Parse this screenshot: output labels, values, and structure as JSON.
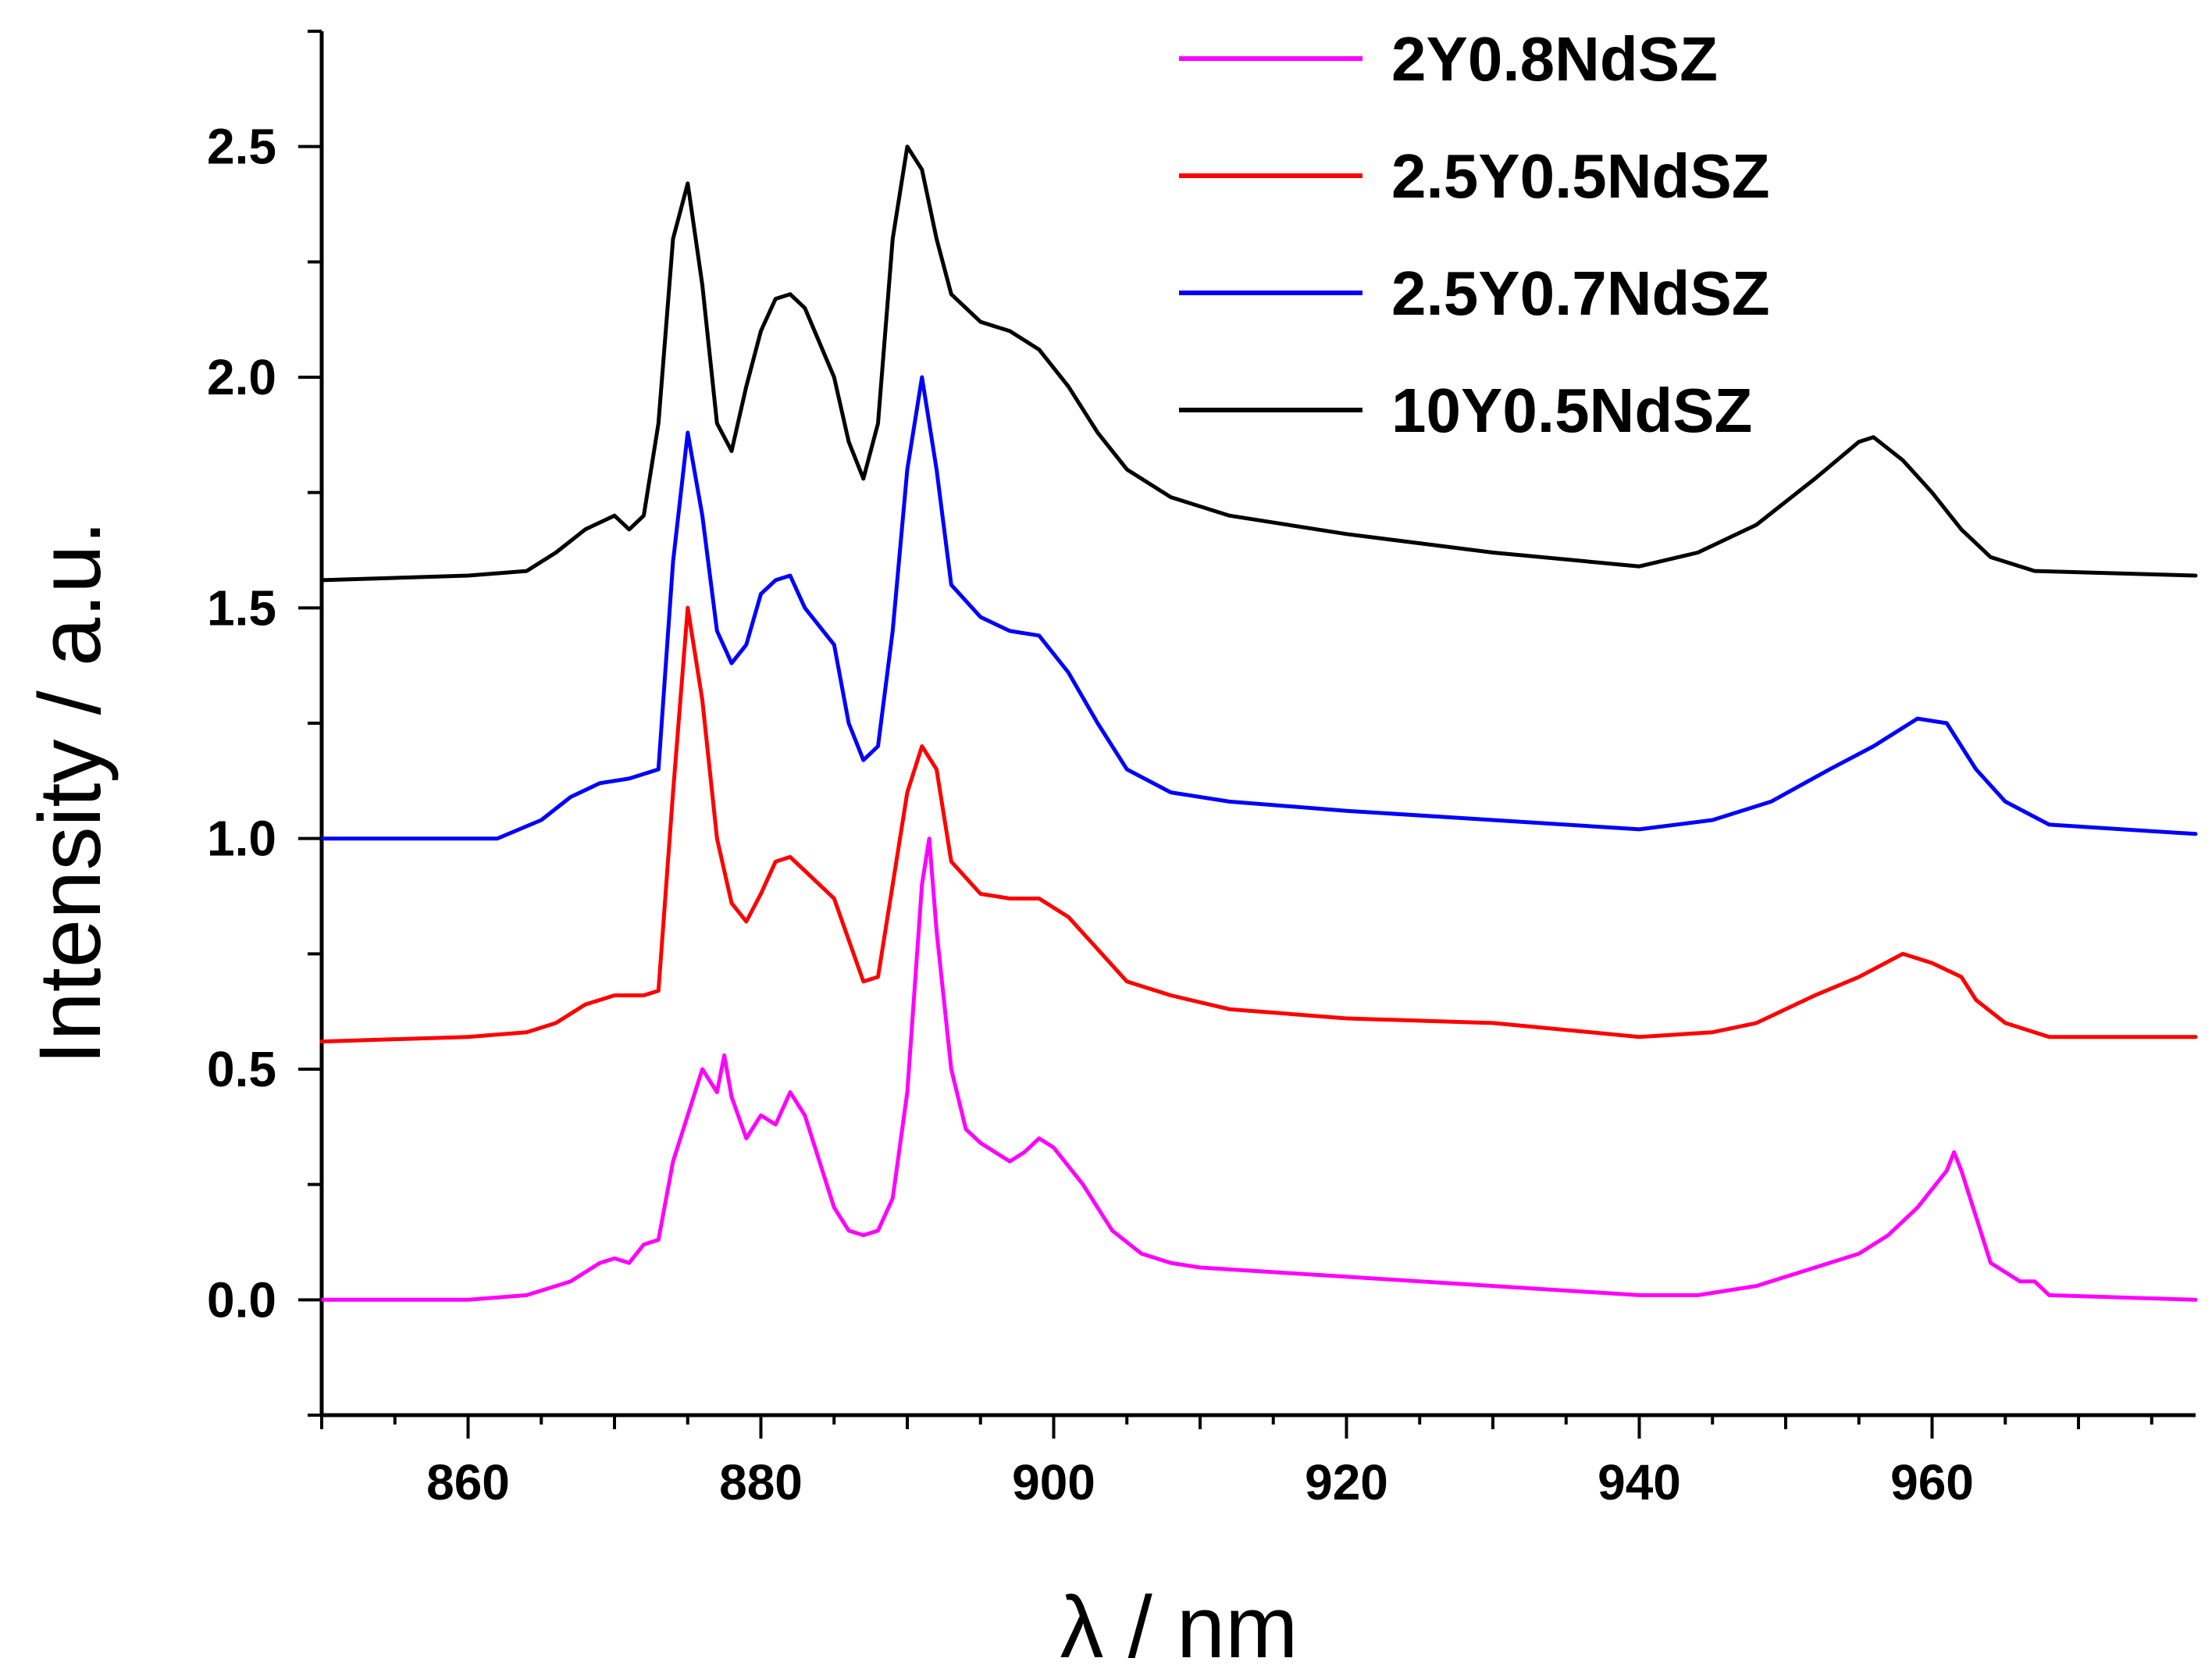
{
  "chart_data": {
    "type": "line",
    "title": "",
    "xlabel": "λ / nm",
    "ylabel": "Intensity / a.u.",
    "xlim": [
      850,
      978
    ],
    "ylim": [
      -0.25,
      2.75
    ],
    "xticks": [
      860,
      880,
      900,
      920,
      940,
      960
    ],
    "yticks": [
      0.0,
      0.5,
      1.0,
      1.5,
      2.0,
      2.5
    ],
    "xtick_labels": [
      "860",
      "880",
      "900",
      "920",
      "940",
      "960"
    ],
    "ytick_labels": [
      "0.0",
      "0.5",
      "1.0",
      "1.5",
      "2.0",
      "2.5"
    ],
    "grid": false,
    "legend_position": "top-right",
    "series": [
      {
        "name": "2Y0.8NdSZ",
        "color": "#ff00ff",
        "points": [
          [
            850,
            0.0
          ],
          [
            860,
            0.0
          ],
          [
            864,
            0.01
          ],
          [
            867,
            0.04
          ],
          [
            869,
            0.08
          ],
          [
            870,
            0.09
          ],
          [
            871,
            0.08
          ],
          [
            872,
            0.12
          ],
          [
            873,
            0.13
          ],
          [
            874,
            0.3
          ],
          [
            875,
            0.4
          ],
          [
            876,
            0.5
          ],
          [
            877,
            0.45
          ],
          [
            877.5,
            0.53
          ],
          [
            878,
            0.44
          ],
          [
            879,
            0.35
          ],
          [
            880,
            0.4
          ],
          [
            881,
            0.38
          ],
          [
            882,
            0.45
          ],
          [
            883,
            0.4
          ],
          [
            884,
            0.3
          ],
          [
            885,
            0.2
          ],
          [
            886,
            0.15
          ],
          [
            887,
            0.14
          ],
          [
            888,
            0.15
          ],
          [
            889,
            0.22
          ],
          [
            890,
            0.45
          ],
          [
            891,
            0.9
          ],
          [
            891.5,
            1.0
          ],
          [
            892,
            0.8
          ],
          [
            893,
            0.5
          ],
          [
            894,
            0.37
          ],
          [
            895,
            0.34
          ],
          [
            897,
            0.3
          ],
          [
            898,
            0.32
          ],
          [
            899,
            0.35
          ],
          [
            900,
            0.33
          ],
          [
            902,
            0.25
          ],
          [
            904,
            0.15
          ],
          [
            906,
            0.1
          ],
          [
            908,
            0.08
          ],
          [
            910,
            0.07
          ],
          [
            915,
            0.06
          ],
          [
            920,
            0.05
          ],
          [
            930,
            0.03
          ],
          [
            940,
            0.01
          ],
          [
            944,
            0.01
          ],
          [
            948,
            0.03
          ],
          [
            952,
            0.07
          ],
          [
            955,
            0.1
          ],
          [
            957,
            0.14
          ],
          [
            959,
            0.2
          ],
          [
            961,
            0.28
          ],
          [
            961.5,
            0.32
          ],
          [
            962,
            0.28
          ],
          [
            963,
            0.18
          ],
          [
            964,
            0.08
          ],
          [
            966,
            0.04
          ],
          [
            967,
            0.04
          ],
          [
            968,
            0.01
          ],
          [
            978,
            0.0
          ]
        ]
      },
      {
        "name": "2.5Y0.5NdSZ",
        "color": "#ff0000",
        "points": [
          [
            850,
            0.56
          ],
          [
            860,
            0.57
          ],
          [
            864,
            0.58
          ],
          [
            866,
            0.6
          ],
          [
            868,
            0.64
          ],
          [
            870,
            0.66
          ],
          [
            872,
            0.66
          ],
          [
            873,
            0.67
          ],
          [
            874,
            1.1
          ],
          [
            875,
            1.5
          ],
          [
            876,
            1.3
          ],
          [
            877,
            1.0
          ],
          [
            878,
            0.86
          ],
          [
            879,
            0.82
          ],
          [
            880,
            0.88
          ],
          [
            881,
            0.95
          ],
          [
            882,
            0.96
          ],
          [
            883,
            0.93
          ],
          [
            885,
            0.87
          ],
          [
            886,
            0.78
          ],
          [
            887,
            0.69
          ],
          [
            888,
            0.7
          ],
          [
            889,
            0.9
          ],
          [
            890,
            1.1
          ],
          [
            891,
            1.2
          ],
          [
            892,
            1.15
          ],
          [
            893,
            0.95
          ],
          [
            895,
            0.88
          ],
          [
            897,
            0.87
          ],
          [
            899,
            0.87
          ],
          [
            901,
            0.83
          ],
          [
            903,
            0.76
          ],
          [
            905,
            0.69
          ],
          [
            908,
            0.66
          ],
          [
            912,
            0.63
          ],
          [
            920,
            0.61
          ],
          [
            930,
            0.6
          ],
          [
            940,
            0.57
          ],
          [
            945,
            0.58
          ],
          [
            948,
            0.6
          ],
          [
            952,
            0.66
          ],
          [
            955,
            0.7
          ],
          [
            958,
            0.75
          ],
          [
            960,
            0.73
          ],
          [
            962,
            0.7
          ],
          [
            963,
            0.65
          ],
          [
            965,
            0.6
          ],
          [
            968,
            0.57
          ],
          [
            978,
            0.57
          ]
        ]
      },
      {
        "name": "2.5Y0.7NdSZ",
        "color": "#0000ff",
        "points": [
          [
            850,
            1.0
          ],
          [
            862,
            1.0
          ],
          [
            865,
            1.04
          ],
          [
            867,
            1.09
          ],
          [
            869,
            1.12
          ],
          [
            871,
            1.13
          ],
          [
            873,
            1.15
          ],
          [
            874,
            1.6
          ],
          [
            875,
            1.88
          ],
          [
            876,
            1.7
          ],
          [
            877,
            1.45
          ],
          [
            878,
            1.38
          ],
          [
            879,
            1.42
          ],
          [
            880,
            1.53
          ],
          [
            881,
            1.56
          ],
          [
            882,
            1.57
          ],
          [
            883,
            1.5
          ],
          [
            885,
            1.42
          ],
          [
            886,
            1.25
          ],
          [
            887,
            1.17
          ],
          [
            888,
            1.2
          ],
          [
            889,
            1.45
          ],
          [
            890,
            1.8
          ],
          [
            891,
            2.0
          ],
          [
            892,
            1.8
          ],
          [
            893,
            1.55
          ],
          [
            895,
            1.48
          ],
          [
            897,
            1.45
          ],
          [
            899,
            1.44
          ],
          [
            901,
            1.36
          ],
          [
            903,
            1.25
          ],
          [
            905,
            1.15
          ],
          [
            908,
            1.1
          ],
          [
            912,
            1.08
          ],
          [
            920,
            1.06
          ],
          [
            930,
            1.04
          ],
          [
            940,
            1.02
          ],
          [
            945,
            1.04
          ],
          [
            949,
            1.08
          ],
          [
            953,
            1.15
          ],
          [
            956,
            1.2
          ],
          [
            959,
            1.26
          ],
          [
            961,
            1.25
          ],
          [
            963,
            1.15
          ],
          [
            965,
            1.08
          ],
          [
            968,
            1.03
          ],
          [
            978,
            1.01
          ]
        ]
      },
      {
        "name": "10Y0.5NdSZ",
        "color": "#000000",
        "points": [
          [
            850,
            1.56
          ],
          [
            860,
            1.57
          ],
          [
            864,
            1.58
          ],
          [
            866,
            1.62
          ],
          [
            868,
            1.67
          ],
          [
            870,
            1.7
          ],
          [
            871,
            1.67
          ],
          [
            872,
            1.7
          ],
          [
            873,
            1.9
          ],
          [
            874,
            2.3
          ],
          [
            875,
            2.42
          ],
          [
            876,
            2.2
          ],
          [
            877,
            1.9
          ],
          [
            878,
            1.84
          ],
          [
            879,
            1.98
          ],
          [
            880,
            2.1
          ],
          [
            881,
            2.17
          ],
          [
            882,
            2.18
          ],
          [
            883,
            2.15
          ],
          [
            885,
            2.0
          ],
          [
            886,
            1.86
          ],
          [
            887,
            1.78
          ],
          [
            888,
            1.9
          ],
          [
            889,
            2.3
          ],
          [
            890,
            2.5
          ],
          [
            891,
            2.45
          ],
          [
            892,
            2.3
          ],
          [
            893,
            2.18
          ],
          [
            895,
            2.12
          ],
          [
            897,
            2.1
          ],
          [
            899,
            2.06
          ],
          [
            901,
            1.98
          ],
          [
            903,
            1.88
          ],
          [
            905,
            1.8
          ],
          [
            908,
            1.74
          ],
          [
            912,
            1.7
          ],
          [
            920,
            1.66
          ],
          [
            930,
            1.62
          ],
          [
            940,
            1.59
          ],
          [
            944,
            1.62
          ],
          [
            948,
            1.68
          ],
          [
            952,
            1.78
          ],
          [
            955,
            1.86
          ],
          [
            956,
            1.87
          ],
          [
            958,
            1.82
          ],
          [
            960,
            1.75
          ],
          [
            962,
            1.67
          ],
          [
            964,
            1.61
          ],
          [
            967,
            1.58
          ],
          [
            978,
            1.57
          ]
        ]
      }
    ]
  }
}
